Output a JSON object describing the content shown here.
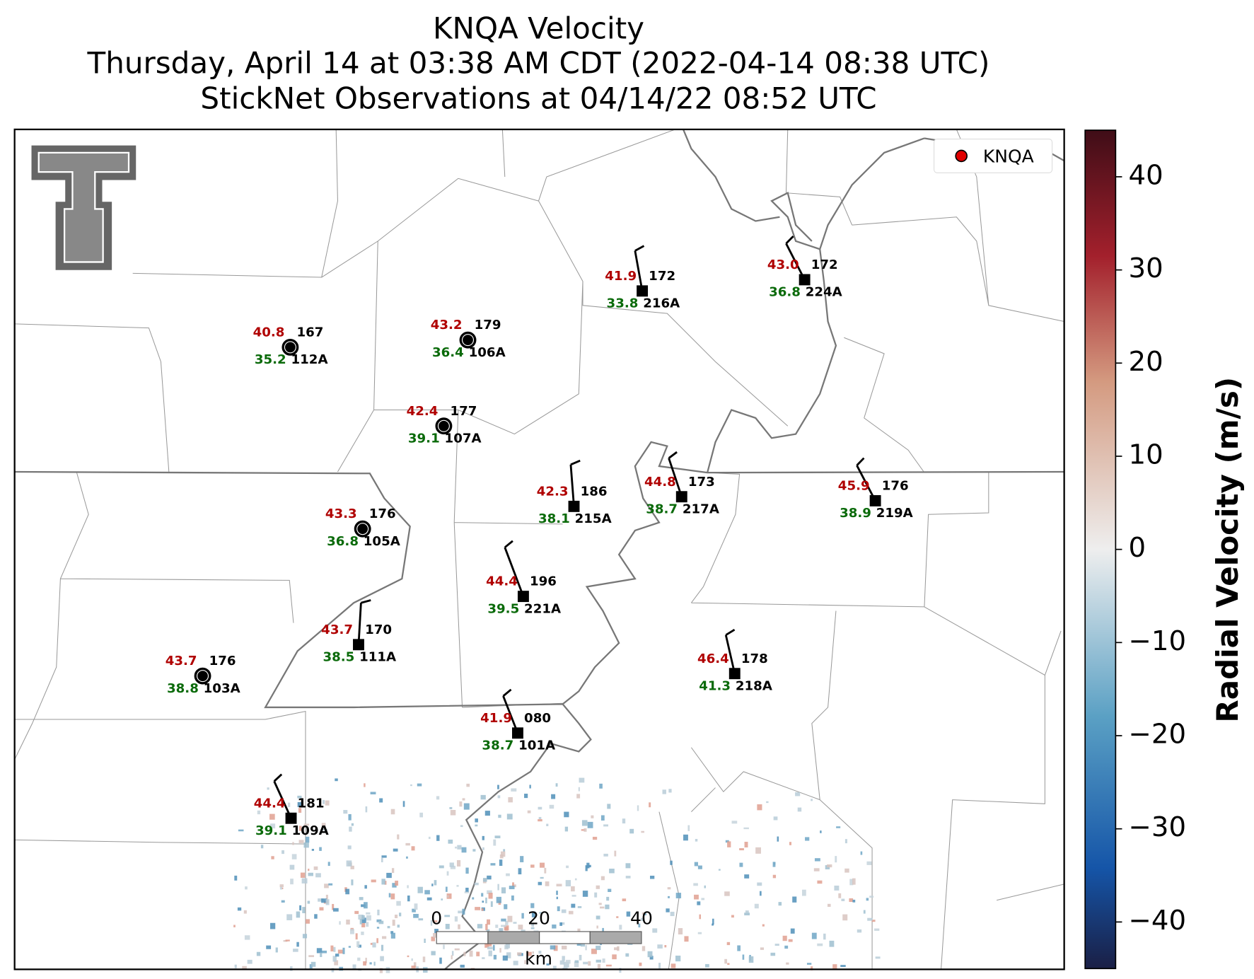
{
  "header": {
    "title": [
      "KNQA Velocity",
      "Thursday, April 14 at 03:38 AM CDT (2022-04-14 08:38 UTC)",
      "StickNet Observations at 04/14/22 08:52 UTC"
    ]
  },
  "legend": {
    "label": "KNQA",
    "color": "#e00000"
  },
  "stations": [
    {
      "id": "112A",
      "temperature": "40.8",
      "dewpoint": "35.2",
      "value": "167",
      "marker": "circle"
    },
    {
      "id": "106A",
      "temperature": "43.2",
      "dewpoint": "36.4",
      "value": "179",
      "marker": "circle"
    },
    {
      "id": "107A",
      "temperature": "42.4",
      "dewpoint": "39.1",
      "value": "177",
      "marker": "circle"
    },
    {
      "id": "105A",
      "temperature": "43.3",
      "dewpoint": "36.8",
      "value": "176",
      "marker": "circle"
    },
    {
      "id": "103A",
      "temperature": "43.7",
      "dewpoint": "38.8",
      "value": "176",
      "marker": "circle"
    },
    {
      "id": "216A",
      "temperature": "41.9",
      "dewpoint": "33.8",
      "value": "172",
      "marker": "square"
    },
    {
      "id": "224A",
      "temperature": "43.0",
      "dewpoint": "36.8",
      "value": "172",
      "marker": "square"
    },
    {
      "id": "215A",
      "temperature": "42.3",
      "dewpoint": "38.1",
      "value": "186",
      "marker": "square"
    },
    {
      "id": "217A",
      "temperature": "44.8",
      "dewpoint": "38.7",
      "value": "173",
      "marker": "square"
    },
    {
      "id": "219A",
      "temperature": "45.9",
      "dewpoint": "38.9",
      "value": "176",
      "marker": "square"
    },
    {
      "id": "221A",
      "temperature": "44.4",
      "dewpoint": "39.5",
      "value": "196",
      "marker": "square"
    },
    {
      "id": "111A",
      "temperature": "43.7",
      "dewpoint": "38.5",
      "value": "170",
      "marker": "square"
    },
    {
      "id": "218A",
      "temperature": "46.4",
      "dewpoint": "41.3",
      "value": "178",
      "marker": "square"
    },
    {
      "id": "101A",
      "temperature": "41.9",
      "dewpoint": "38.7",
      "value": "080",
      "marker": "square"
    },
    {
      "id": "109A",
      "temperature": "44.4",
      "dewpoint": "39.1",
      "value": "181",
      "marker": "square"
    }
  ],
  "colorbar": {
    "label": "Radial Velocity (m/s)",
    "lim": [
      -45,
      45
    ],
    "ticks": [
      40,
      30,
      20,
      10,
      0,
      {
        "value": -10,
        "label": "−10"
      },
      {
        "value": -20,
        "label": "−20"
      },
      {
        "value": -30,
        "label": "−30"
      },
      {
        "value": -40,
        "label": "−40"
      }
    ]
  },
  "scalebar": {
    "ticks": [
      0,
      20,
      40
    ],
    "unit": "km"
  }
}
